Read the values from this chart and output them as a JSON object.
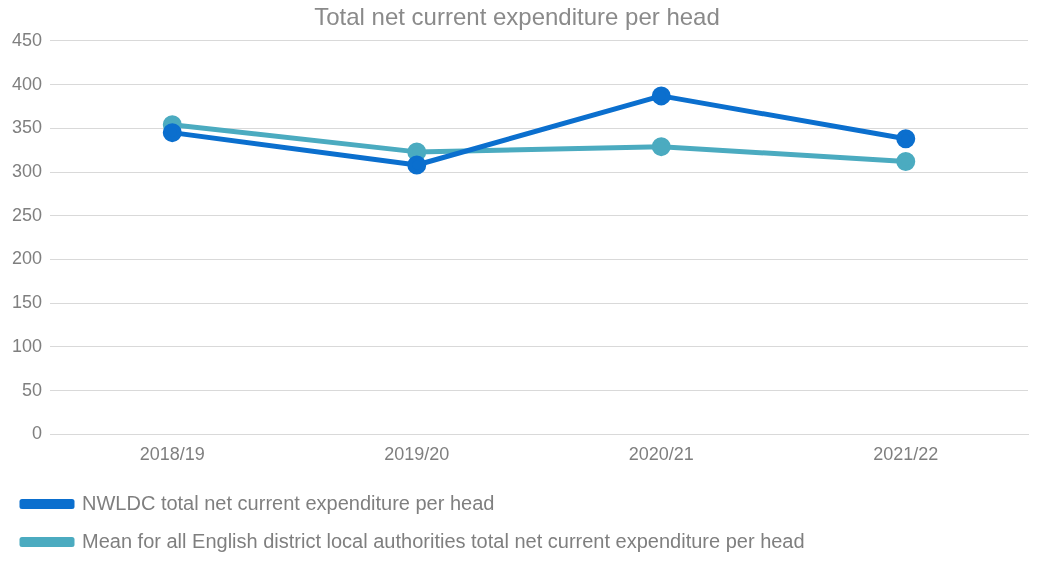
{
  "chart_data": {
    "type": "line",
    "title": "Total net current expenditure per head",
    "categories": [
      "2018/19",
      "2019/20",
      "2020/21",
      "2021/22"
    ],
    "series": [
      {
        "name": "NWLDC total net current expenditure per head",
        "color": "#0b6fce",
        "values": [
          345,
          308,
          387,
          338
        ]
      },
      {
        "name": "Mean for all English district local authorities total net current expenditure per head",
        "color": "#4babc0",
        "values": [
          354,
          323,
          329,
          312
        ]
      }
    ],
    "ylim": [
      0,
      450
    ],
    "yticks": [
      0,
      50,
      100,
      150,
      200,
      250,
      300,
      350,
      400,
      450
    ],
    "grid": "y",
    "legend": "bottom",
    "marker": "circle",
    "line_style": "solid"
  }
}
